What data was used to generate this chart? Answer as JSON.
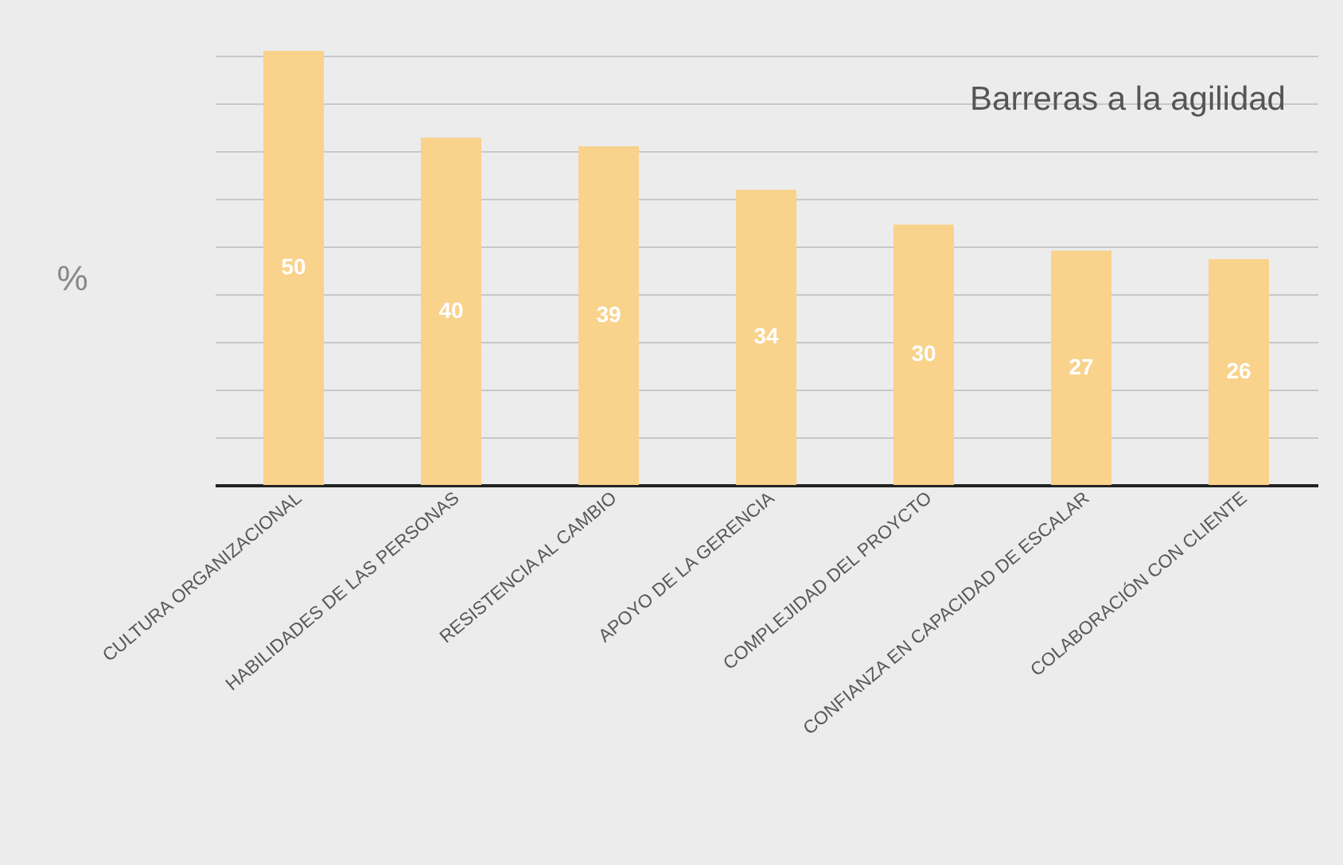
{
  "chart_data": {
    "type": "bar",
    "title": "Barreras a la agilidad",
    "ylabel": "%",
    "categories": [
      "CULTURA ORGANIZACIONAL",
      "HABILIDADES DE LAS PERSONAS",
      "RESISTENCIA AL CAMBIO",
      "APOYO DE LA GERENCIA",
      "COMPLEJIDAD DEL PROYCTO",
      "CONFIANZA EN CAPACIDAD DE ESCALAR",
      "COLABORACIÓN CON CLIENTE"
    ],
    "values": [
      50,
      40,
      39,
      34,
      30,
      27,
      26
    ],
    "color": "#f9d28c",
    "ylim": [
      0,
      50
    ],
    "yticks": [
      {
        "value": 0,
        "label": null
      },
      {
        "value": 5.5,
        "label": null
      },
      {
        "value": 11,
        "label": null
      },
      {
        "value": 16.5,
        "label": null
      },
      {
        "value": 22,
        "label": null
      },
      {
        "value": 27.5,
        "label": null
      },
      {
        "value": 33,
        "label": null
      },
      {
        "value": 38.5,
        "label": null
      },
      {
        "value": 44,
        "label": null
      },
      {
        "value": 49.5,
        "label": null
      }
    ],
    "grid": "y",
    "tick_labels": "x",
    "data_labels": true
  }
}
